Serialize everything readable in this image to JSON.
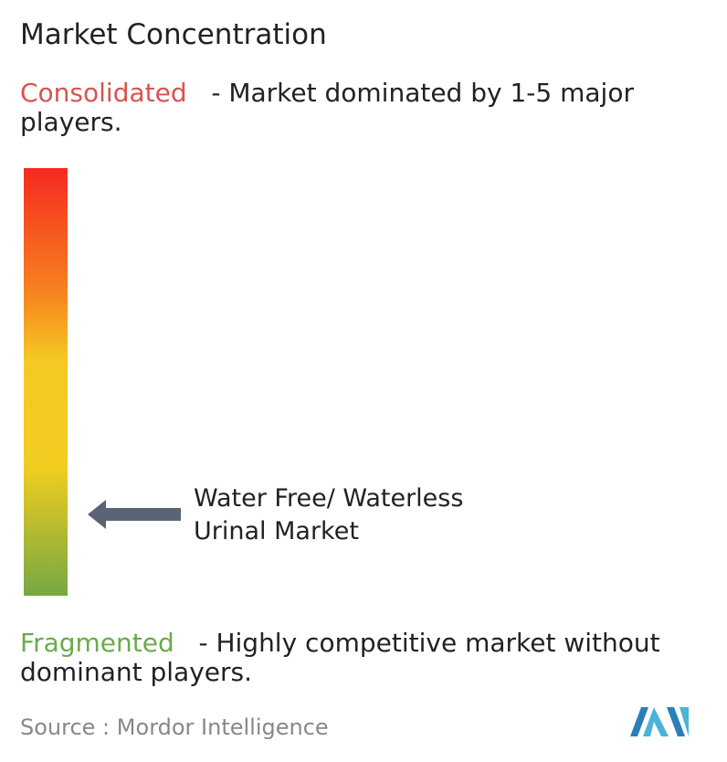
{
  "title": "Market Concentration",
  "consolidated": {
    "label": "Consolidated",
    "description": "- Market dominated by 1-5 major players."
  },
  "fragmented": {
    "label": "Fragmented",
    "description": "- Highly competitive market without dominant players."
  },
  "market": {
    "line1": "Water Free/ Waterless",
    "line2": "Urinal Market"
  },
  "source": {
    "label": "Source :",
    "name": "Mordor Intelligence"
  }
}
